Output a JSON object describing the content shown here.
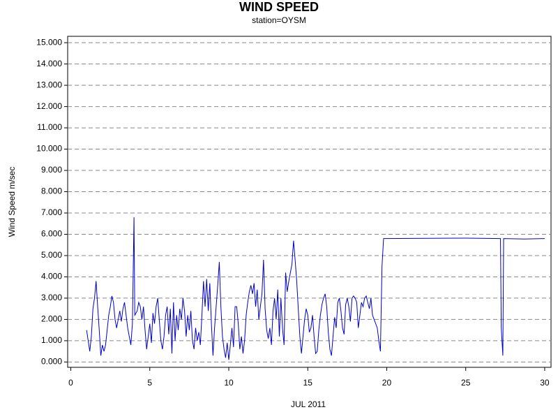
{
  "chart_data": {
    "type": "line",
    "title": "WIND SPEED",
    "subtitle": "station=OYSM",
    "x_label": "JUL 2011",
    "y_label": "Wind Speed m/sec",
    "color": "#0000cc",
    "grid": true,
    "xlim": [
      -0.2,
      30.4
    ],
    "ylim": [
      -0.25,
      15.3
    ],
    "xticks": [
      0,
      5,
      10,
      15,
      20,
      25,
      30
    ],
    "yticks": [
      {
        "value": 0,
        "label": "0.000"
      },
      {
        "value": 1,
        "label": "1.000"
      },
      {
        "value": 2,
        "label": "2.000"
      },
      {
        "value": 3,
        "label": "3.000"
      },
      {
        "value": 4,
        "label": "4.000"
      },
      {
        "value": 5,
        "label": "5.000"
      },
      {
        "value": 6,
        "label": "6.000"
      },
      {
        "value": 7,
        "label": "7.000"
      },
      {
        "value": 8,
        "label": "8.000"
      },
      {
        "value": 9,
        "label": "9.000"
      },
      {
        "value": 10,
        "label": "10.000"
      },
      {
        "value": 11,
        "label": "11.000"
      },
      {
        "value": 12,
        "label": "12.000"
      },
      {
        "value": 13,
        "label": "13.000"
      },
      {
        "value": 14,
        "label": "14.000"
      },
      {
        "value": 15,
        "label": "15.000"
      }
    ],
    "x": [
      1.0,
      1.1,
      1.2,
      1.3,
      1.4,
      1.5,
      1.6,
      1.7,
      1.8,
      1.9,
      2.0,
      2.1,
      2.2,
      2.3,
      2.4,
      2.5,
      2.6,
      2.7,
      2.8,
      2.9,
      3.0,
      3.1,
      3.2,
      3.3,
      3.4,
      3.5,
      3.6,
      3.7,
      3.8,
      3.9,
      4.0,
      4.05,
      4.2,
      4.3,
      4.4,
      4.5,
      4.6,
      4.7,
      4.8,
      4.9,
      5.0,
      5.1,
      5.2,
      5.3,
      5.4,
      5.5,
      5.6,
      5.7,
      5.8,
      5.9,
      6.0,
      6.1,
      6.2,
      6.3,
      6.4,
      6.5,
      6.6,
      6.7,
      6.8,
      6.9,
      7.0,
      7.1,
      7.2,
      7.3,
      7.4,
      7.5,
      7.6,
      7.7,
      7.8,
      7.9,
      8.0,
      8.1,
      8.2,
      8.3,
      8.4,
      8.5,
      8.6,
      8.7,
      8.8,
      8.9,
      9.0,
      9.1,
      9.2,
      9.3,
      9.4,
      9.5,
      9.6,
      9.7,
      9.8,
      9.9,
      10.0,
      10.1,
      10.2,
      10.3,
      10.4,
      10.5,
      10.6,
      10.7,
      10.8,
      10.9,
      11.0,
      11.1,
      11.2,
      11.3,
      11.4,
      11.5,
      11.6,
      11.7,
      11.8,
      11.9,
      12.0,
      12.1,
      12.2,
      12.3,
      12.4,
      12.5,
      12.6,
      12.7,
      12.8,
      12.9,
      13.0,
      13.1,
      13.2,
      13.3,
      13.4,
      13.5,
      13.6,
      13.7,
      13.8,
      13.9,
      14.0,
      14.1,
      14.2,
      14.3,
      14.4,
      14.5,
      14.6,
      14.7,
      14.8,
      14.9,
      15.0,
      15.1,
      15.2,
      15.3,
      15.4,
      15.5,
      15.6,
      15.7,
      15.8,
      15.9,
      16.0,
      16.1,
      16.2,
      16.3,
      16.4,
      16.5,
      16.6,
      16.7,
      16.8,
      16.9,
      17.0,
      17.1,
      17.2,
      17.3,
      17.4,
      17.5,
      17.6,
      17.7,
      17.8,
      17.9,
      18.0,
      18.1,
      18.2,
      18.3,
      18.4,
      18.5,
      18.6,
      18.7,
      18.8,
      18.9,
      19.0,
      19.1,
      19.2,
      19.3,
      19.4,
      19.5,
      19.6,
      19.7,
      19.8,
      25.0,
      27.2,
      27.25,
      27.35,
      27.4,
      28.7,
      30.0
    ],
    "values": [
      1.5,
      1.0,
      0.5,
      1.2,
      2.5,
      3.0,
      3.8,
      2.6,
      1.5,
      0.3,
      0.8,
      0.5,
      0.8,
      1.5,
      2.2,
      2.6,
      3.1,
      2.8,
      2.0,
      1.6,
      2.0,
      2.4,
      1.9,
      2.5,
      2.8,
      2.2,
      1.6,
      1.2,
      0.8,
      1.8,
      6.8,
      2.2,
      2.4,
      2.8,
      2.6,
      2.0,
      2.6,
      1.5,
      0.6,
      1.2,
      1.8,
      0.9,
      2.3,
      1.8,
      2.6,
      3.0,
      2.0,
      1.0,
      0.6,
      1.2,
      2.2,
      2.6,
      1.3,
      2.5,
      0.4,
      2.8,
      1.0,
      2.2,
      1.5,
      2.5,
      2.0,
      3.0,
      2.4,
      1.2,
      2.2,
      1.5,
      2.4,
      1.0,
      0.6,
      1.6,
      1.0,
      1.4,
      0.8,
      2.2,
      3.8,
      2.6,
      3.9,
      2.4,
      3.7,
      1.8,
      0.3,
      1.6,
      2.6,
      3.6,
      4.7,
      2.6,
      1.2,
      0.6,
      0.2,
      0.9,
      0.1,
      0.8,
      1.6,
      0.7,
      2.6,
      2.6,
      1.8,
      0.6,
      1.2,
      0.4,
      1.0,
      2.2,
      2.8,
      3.3,
      3.6,
      3.2,
      3.7,
      2.6,
      3.4,
      2.0,
      2.6,
      3.2,
      4.8,
      2.5,
      1.5,
      1.1,
      1.6,
      0.8,
      2.4,
      3.0,
      2.0,
      3.4,
      1.2,
      3.0,
      1.6,
      0.8,
      4.2,
      3.3,
      3.8,
      4.2,
      4.6,
      5.7,
      4.8,
      3.8,
      2.5,
      1.2,
      0.4,
      1.2,
      2.0,
      2.5,
      2.2,
      1.4,
      1.6,
      2.2,
      1.2,
      0.4,
      0.5,
      1.5,
      2.2,
      2.7,
      3.0,
      3.2,
      2.6,
      1.4,
      0.6,
      0.3,
      1.2,
      2.1,
      1.6,
      2.8,
      3.0,
      2.4,
      1.6,
      1.3,
      2.7,
      3.0,
      2.6,
      1.9,
      3.0,
      3.1,
      3.0,
      2.8,
      1.6,
      2.2,
      2.8,
      2.6,
      3.0,
      3.1,
      2.8,
      2.5,
      3.0,
      2.2,
      2.0,
      1.8,
      1.6,
      1.0,
      0.5,
      4.5,
      5.8,
      5.82,
      5.8,
      1.6,
      0.3,
      5.8,
      5.78,
      5.8
    ]
  }
}
